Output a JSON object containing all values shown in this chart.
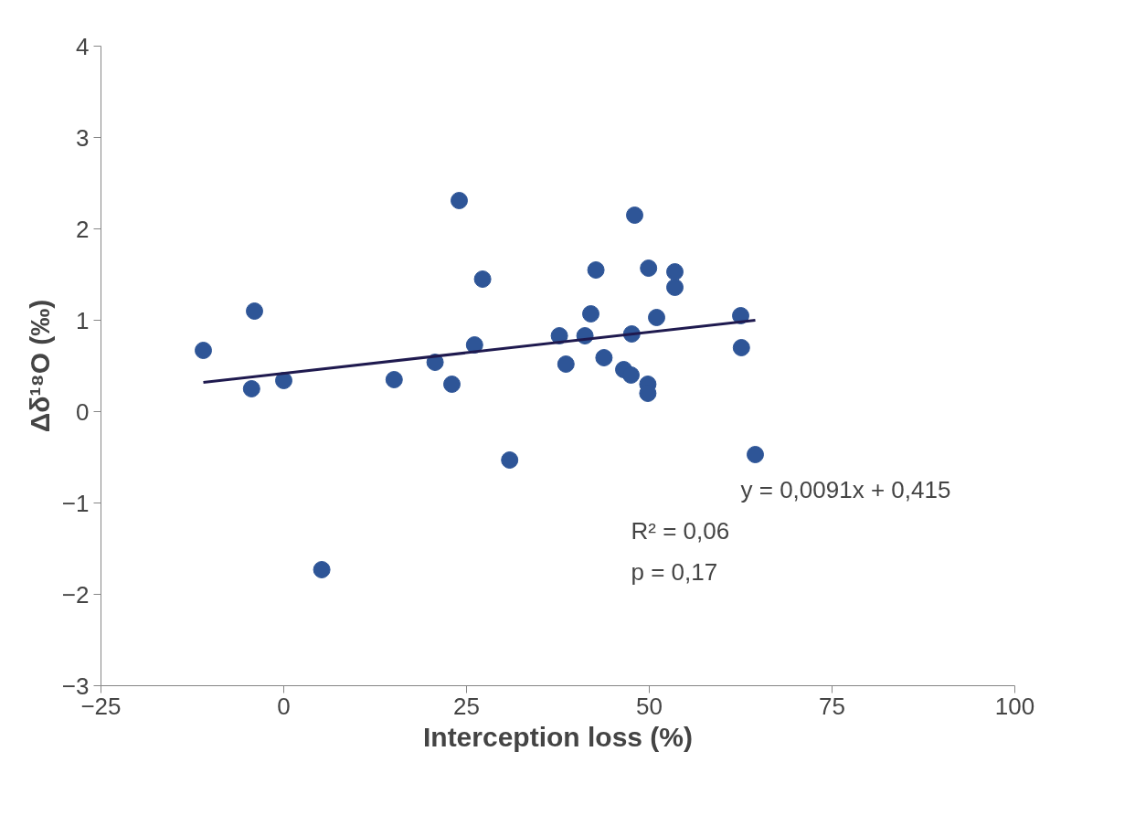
{
  "chart_data": {
    "type": "scatter",
    "xlabel": "Interception loss (%)",
    "ylabel": "Δδ¹⁸O (‰)",
    "xlim": [
      -25,
      100
    ],
    "xticks": [
      -25,
      0,
      25,
      50,
      75,
      100
    ],
    "ylim": [
      -3,
      4
    ],
    "yticks": [
      -3,
      -2,
      -1,
      0,
      1,
      2,
      3,
      4
    ],
    "grid": false,
    "series": [
      {
        "color": "#2e5597",
        "marker": "circle",
        "x": [
          -11,
          -4.4,
          -4.0,
          0,
          5.2,
          15.1,
          20.7,
          23.0,
          24.0,
          26.1,
          27.2,
          30.9,
          37.7,
          38.6,
          41.2,
          42.0,
          42.7,
          43.8,
          46.5,
          47.5,
          47.6,
          48.0,
          49.9,
          49.8,
          49.8,
          51.0,
          53.5,
          53.5,
          62.5,
          62.6,
          64.5
        ],
        "values": [
          0.67,
          0.25,
          1.1,
          0.34,
          -1.73,
          0.35,
          0.54,
          0.3,
          2.31,
          0.73,
          1.45,
          -0.53,
          0.83,
          0.52,
          0.83,
          1.07,
          1.55,
          0.59,
          0.46,
          0.4,
          0.85,
          2.15,
          1.57,
          0.3,
          0.2,
          1.03,
          1.53,
          1.36,
          1.05,
          0.7,
          -0.47
        ]
      },
      {
        "type": "line",
        "marker": "none",
        "color": "#1f1a4f",
        "x": [
          -11,
          64.5
        ],
        "values": [
          0.32,
          1.0
        ]
      }
    ],
    "annotations": [
      "y = 0,0091x + 0,415",
      "R² = 0,06",
      "p = 0,17"
    ]
  }
}
